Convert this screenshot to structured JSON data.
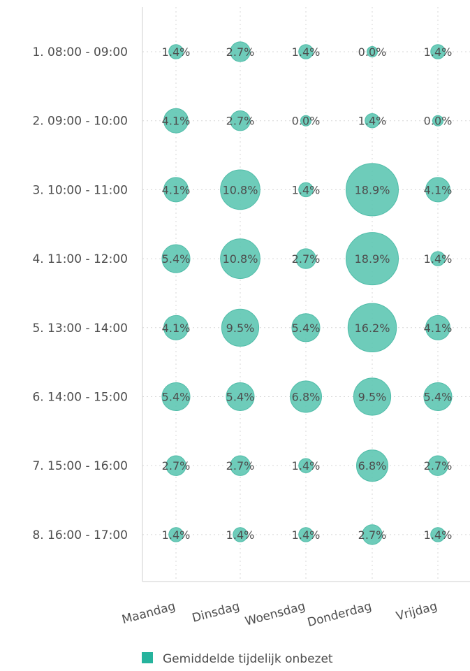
{
  "chart_data": {
    "type": "bubble",
    "title": "",
    "xlabel": "",
    "ylabel": "",
    "x_categories": [
      "Maandag",
      "Dinsdag",
      "Woensdag",
      "Donderdag",
      "Vrijdag"
    ],
    "y_categories": [
      "1. 08:00 - 09:00",
      "2. 09:00 - 10:00",
      "3. 10:00 - 11:00",
      "4. 11:00 - 12:00",
      "5. 13:00 - 14:00",
      "6. 14:00 - 15:00",
      "7. 15:00 - 16:00",
      "8. 16:00 - 17:00"
    ],
    "series": [
      {
        "name": "Gemiddelde tijdelijk onbezet",
        "color": "#5ec7b3",
        "values": [
          [
            1.4,
            2.7,
            1.4,
            0.0,
            1.4
          ],
          [
            4.1,
            2.7,
            0.0,
            1.4,
            0.0
          ],
          [
            4.1,
            10.8,
            1.4,
            18.9,
            4.1
          ],
          [
            5.4,
            10.8,
            2.7,
            18.9,
            1.4
          ],
          [
            4.1,
            9.5,
            5.4,
            16.2,
            4.1
          ],
          [
            5.4,
            5.4,
            6.8,
            9.5,
            5.4
          ],
          [
            2.7,
            2.7,
            1.4,
            6.8,
            2.7
          ],
          [
            1.4,
            1.4,
            1.4,
            2.7,
            1.4
          ]
        ],
        "labels": [
          [
            "1.4%",
            "2.7%",
            "1.4%",
            "0.0%",
            "1.4%"
          ],
          [
            "4.1%",
            "2.7%",
            "0.0%",
            "1.4%",
            "0.0%"
          ],
          [
            "4.1%",
            "10.8%",
            "1.4%",
            "18.9%",
            "4.1%"
          ],
          [
            "5.4%",
            "10.8%",
            "2.7%",
            "18.9%",
            "1.4%"
          ],
          [
            "4.1%",
            "9.5%",
            "5.4%",
            "16.2%",
            "4.1%"
          ],
          [
            "5.4%",
            "5.4%",
            "6.8%",
            "9.5%",
            "5.4%"
          ],
          [
            "2.7%",
            "2.7%",
            "1.4%",
            "6.8%",
            "2.7%"
          ],
          [
            "1.4%",
            "1.4%",
            "1.4%",
            "2.7%",
            "1.4%"
          ]
        ]
      }
    ],
    "grid": true,
    "legend_position": "bottom-center",
    "legend": {
      "label": "Gemiddelde tijdelijk onbezet",
      "color": "#26b39d"
    },
    "colors": {
      "axis": "#cfcfcf",
      "grid": "#d7d7d7",
      "text": "#4d4d4d",
      "bubble": "#5ec7b3",
      "bubble_stroke": "#4fbca8"
    }
  }
}
